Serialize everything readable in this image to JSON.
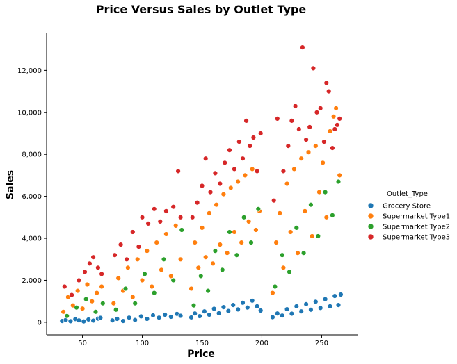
{
  "chart_data": {
    "type": "scatter",
    "title": "Price Versus Sales by Outlet Type",
    "xlabel": "Price",
    "ylabel": "Sales",
    "xlim": [
      20,
      280
    ],
    "ylim": [
      -600,
      13800
    ],
    "x_ticks": [
      50,
      100,
      150,
      200,
      250
    ],
    "x_tick_labels": [
      "50",
      "100",
      "150",
      "200",
      "250"
    ],
    "y_ticks": [
      0,
      2000,
      4000,
      6000,
      8000,
      10000,
      12000
    ],
    "y_tick_labels": [
      "0",
      "2,000",
      "4,000",
      "6,000",
      "8,000",
      "10,000",
      "12,000"
    ],
    "grid": false,
    "legend": {
      "title": "Outlet_Type",
      "position": "right"
    },
    "series": [
      {
        "name": "Grocery Store",
        "color": "#1f77b4",
        "points": [
          [
            33,
            60
          ],
          [
            36,
            110
          ],
          [
            40,
            50
          ],
          [
            44,
            150
          ],
          [
            47,
            90
          ],
          [
            51,
            40
          ],
          [
            55,
            130
          ],
          [
            59,
            80
          ],
          [
            63,
            170
          ],
          [
            65,
            210
          ],
          [
            75,
            90
          ],
          [
            79,
            160
          ],
          [
            84,
            60
          ],
          [
            89,
            220
          ],
          [
            94,
            110
          ],
          [
            99,
            280
          ],
          [
            104,
            160
          ],
          [
            109,
            330
          ],
          [
            114,
            220
          ],
          [
            119,
            360
          ],
          [
            124,
            260
          ],
          [
            129,
            400
          ],
          [
            132,
            310
          ],
          [
            141,
            230
          ],
          [
            144,
            420
          ],
          [
            148,
            290
          ],
          [
            152,
            520
          ],
          [
            156,
            360
          ],
          [
            160,
            640
          ],
          [
            164,
            430
          ],
          [
            168,
            720
          ],
          [
            172,
            540
          ],
          [
            176,
            820
          ],
          [
            180,
            610
          ],
          [
            184,
            930
          ],
          [
            188,
            700
          ],
          [
            192,
            1030
          ],
          [
            196,
            760
          ],
          [
            199,
            560
          ],
          [
            209,
            240
          ],
          [
            213,
            420
          ],
          [
            217,
            320
          ],
          [
            221,
            620
          ],
          [
            225,
            410
          ],
          [
            229,
            760
          ],
          [
            233,
            520
          ],
          [
            237,
            860
          ],
          [
            241,
            600
          ],
          [
            245,
            980
          ],
          [
            249,
            680
          ],
          [
            253,
            1100
          ],
          [
            257,
            760
          ],
          [
            261,
            1250
          ],
          [
            264,
            820
          ],
          [
            266,
            1320
          ]
        ]
      },
      {
        "name": "Supermarket Type1",
        "color": "#ff7f0e",
        "points": [
          [
            34,
            500
          ],
          [
            38,
            1200
          ],
          [
            42,
            800
          ],
          [
            46,
            1500
          ],
          [
            50,
            650
          ],
          [
            54,
            1800
          ],
          [
            58,
            1000
          ],
          [
            62,
            1400
          ],
          [
            66,
            1700
          ],
          [
            76,
            900
          ],
          [
            80,
            2100
          ],
          [
            84,
            1500
          ],
          [
            88,
            2600
          ],
          [
            92,
            1200
          ],
          [
            96,
            3000
          ],
          [
            100,
            2000
          ],
          [
            104,
            3400
          ],
          [
            108,
            1700
          ],
          [
            112,
            3800
          ],
          [
            116,
            2500
          ],
          [
            120,
            4200
          ],
          [
            124,
            2200
          ],
          [
            128,
            4600
          ],
          [
            132,
            3000
          ],
          [
            141,
            1600
          ],
          [
            144,
            3800
          ],
          [
            147,
            2600
          ],
          [
            150,
            4500
          ],
          [
            153,
            3100
          ],
          [
            156,
            5200
          ],
          [
            159,
            2800
          ],
          [
            162,
            5600
          ],
          [
            165,
            3700
          ],
          [
            168,
            6100
          ],
          [
            171,
            3300
          ],
          [
            174,
            6400
          ],
          [
            177,
            4300
          ],
          [
            180,
            6700
          ],
          [
            183,
            3800
          ],
          [
            186,
            7000
          ],
          [
            189,
            4800
          ],
          [
            192,
            7300
          ],
          [
            195,
            4400
          ],
          [
            198,
            5300
          ],
          [
            209,
            1400
          ],
          [
            212,
            3800
          ],
          [
            215,
            5200
          ],
          [
            218,
            2600
          ],
          [
            221,
            6600
          ],
          [
            224,
            4300
          ],
          [
            227,
            7300
          ],
          [
            230,
            3300
          ],
          [
            233,
            7800
          ],
          [
            236,
            5300
          ],
          [
            239,
            8100
          ],
          [
            242,
            4100
          ],
          [
            245,
            8400
          ],
          [
            248,
            6200
          ],
          [
            251,
            7600
          ],
          [
            254,
            5000
          ],
          [
            257,
            9100
          ],
          [
            260,
            9800
          ],
          [
            262,
            10200
          ],
          [
            265,
            7000
          ]
        ]
      },
      {
        "name": "Supermarket Type2",
        "color": "#2ca02c",
        "points": [
          [
            37,
            300
          ],
          [
            45,
            700
          ],
          [
            53,
            1100
          ],
          [
            61,
            500
          ],
          [
            67,
            900
          ],
          [
            78,
            600
          ],
          [
            86,
            1600
          ],
          [
            94,
            900
          ],
          [
            102,
            2300
          ],
          [
            110,
            1400
          ],
          [
            118,
            3000
          ],
          [
            126,
            2000
          ],
          [
            133,
            4400
          ],
          [
            143,
            800
          ],
          [
            149,
            2200
          ],
          [
            155,
            1500
          ],
          [
            161,
            3400
          ],
          [
            167,
            2500
          ],
          [
            173,
            4300
          ],
          [
            179,
            3200
          ],
          [
            185,
            5000
          ],
          [
            191,
            3800
          ],
          [
            197,
            5400
          ],
          [
            211,
            1700
          ],
          [
            217,
            3200
          ],
          [
            223,
            2400
          ],
          [
            229,
            4500
          ],
          [
            235,
            3300
          ],
          [
            241,
            5600
          ],
          [
            247,
            4100
          ],
          [
            253,
            6200
          ],
          [
            259,
            5100
          ],
          [
            264,
            6700
          ]
        ]
      },
      {
        "name": "Supermarket Type3",
        "color": "#d62728",
        "points": [
          [
            35,
            1700
          ],
          [
            41,
            1300
          ],
          [
            47,
            2000
          ],
          [
            52,
            2400
          ],
          [
            56,
            2800
          ],
          [
            59,
            3100
          ],
          [
            63,
            2600
          ],
          [
            66,
            2300
          ],
          [
            77,
            3200
          ],
          [
            82,
            3700
          ],
          [
            87,
            3000
          ],
          [
            92,
            4300
          ],
          [
            97,
            3600
          ],
          [
            100,
            5000
          ],
          [
            105,
            4700
          ],
          [
            110,
            5400
          ],
          [
            115,
            4800
          ],
          [
            120,
            5300
          ],
          [
            126,
            5500
          ],
          [
            130,
            7200
          ],
          [
            132,
            5000
          ],
          [
            142,
            5000
          ],
          [
            146,
            5700
          ],
          [
            150,
            6500
          ],
          [
            153,
            7800
          ],
          [
            157,
            6200
          ],
          [
            161,
            7100
          ],
          [
            165,
            6600
          ],
          [
            169,
            7600
          ],
          [
            173,
            8200
          ],
          [
            177,
            7300
          ],
          [
            181,
            8600
          ],
          [
            184,
            7800
          ],
          [
            187,
            9600
          ],
          [
            190,
            8400
          ],
          [
            193,
            8800
          ],
          [
            196,
            7200
          ],
          [
            199,
            9000
          ],
          [
            210,
            5800
          ],
          [
            213,
            9700
          ],
          [
            218,
            7200
          ],
          [
            222,
            8400
          ],
          [
            225,
            9600
          ],
          [
            228,
            10300
          ],
          [
            231,
            9200
          ],
          [
            234,
            13100
          ],
          [
            237,
            8700
          ],
          [
            240,
            9300
          ],
          [
            243,
            12100
          ],
          [
            246,
            10000
          ],
          [
            249,
            10200
          ],
          [
            252,
            8600
          ],
          [
            254,
            11400
          ],
          [
            256,
            11000
          ],
          [
            259,
            8300
          ],
          [
            261,
            9200
          ],
          [
            263,
            9400
          ],
          [
            265,
            9700
          ]
        ]
      }
    ]
  }
}
